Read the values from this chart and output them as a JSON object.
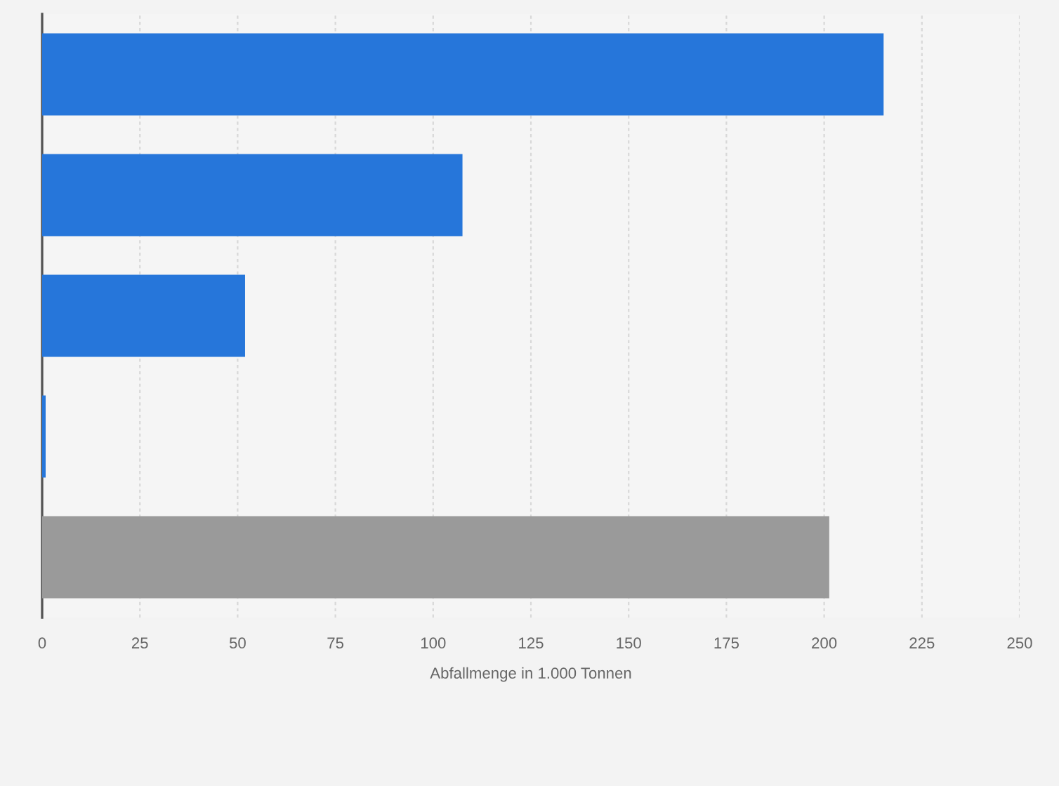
{
  "chart_data": {
    "type": "bar",
    "orientation": "horizontal",
    "xlabel": "Abfallmenge in 1.000 Tonnen",
    "categories": [
      null,
      null,
      null,
      null,
      null
    ],
    "values": [
      215.2,
      107.5,
      51.9,
      0.9,
      201.3
    ],
    "colors": [
      "#2676da",
      "#2676da",
      "#2676da",
      "#2676da",
      "#9a9a9a"
    ],
    "xlim": [
      0,
      250
    ],
    "xticks": [
      0,
      25,
      50,
      75,
      100,
      125,
      150,
      175,
      200,
      225,
      250
    ],
    "grid": "x",
    "tick_labels": "x"
  }
}
